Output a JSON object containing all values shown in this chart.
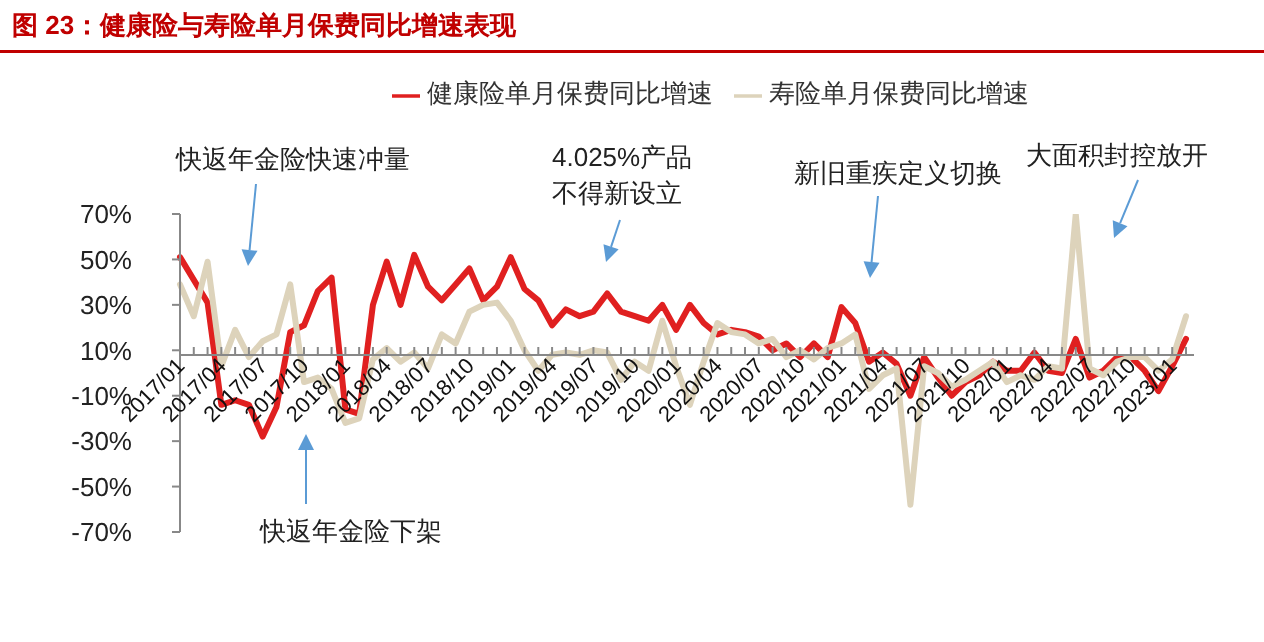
{
  "chart_data": {
    "type": "line",
    "title": "图 23：健康险与寿险单月保费同比增速表现",
    "legend": "top",
    "marker": "none",
    "categories": [
      "2017/01",
      null,
      null,
      "2017/04",
      null,
      null,
      "2017/07",
      null,
      null,
      "2017/10",
      null,
      null,
      "2018/01",
      null,
      null,
      "2018/04",
      null,
      null,
      "2018/07",
      null,
      null,
      "2018/10",
      null,
      null,
      "2019/01",
      null,
      null,
      "2019/04",
      null,
      null,
      "2019/07",
      null,
      null,
      "2019/10",
      null,
      null,
      "2020/01",
      null,
      null,
      "2020/04",
      null,
      null,
      "2020/07",
      null,
      null,
      "2020/10",
      null,
      null,
      "2021/01",
      null,
      null,
      "2021/04",
      null,
      null,
      "2021/07",
      null,
      null,
      "2021/10",
      null,
      null,
      "2022/01",
      null,
      null,
      "2022/04",
      null,
      null,
      "2022/07",
      null,
      null,
      "2022/10",
      null,
      null,
      "2023/01",
      null
    ],
    "series": [
      {
        "name": "健康险单月保费同比增速",
        "color": "#e02020",
        "values": [
          51,
          41,
          31,
          -14,
          -12,
          -14,
          -28,
          -15,
          18,
          21,
          36,
          42,
          -16,
          -18,
          30,
          49,
          30,
          52,
          38,
          32,
          39,
          46,
          32,
          38,
          51,
          37,
          32,
          21,
          28,
          25,
          27,
          35,
          27,
          25,
          23,
          30,
          19,
          30,
          22,
          17,
          19,
          18,
          16,
          10,
          13,
          7,
          13,
          7,
          29,
          22,
          5,
          9,
          4,
          -10,
          7,
          -2,
          -10,
          -4,
          -1,
          5,
          1,
          1,
          9,
          1,
          0,
          15,
          -2,
          1,
          7,
          7,
          1,
          -8,
          3,
          15
        ]
      },
      {
        "name": "寿险单月保费同比增速",
        "color": "#ddd3bb",
        "values": [
          39,
          25,
          49,
          3,
          19,
          7,
          14,
          17,
          39,
          -4,
          -2,
          -7,
          -22,
          -20,
          6,
          11,
          5,
          9,
          2,
          17,
          13,
          27,
          30,
          31,
          23,
          10,
          1,
          8,
          9,
          8,
          10,
          9,
          -3,
          5,
          1,
          23,
          3,
          -14,
          5,
          22,
          18,
          17,
          13,
          15,
          7,
          10,
          6,
          11,
          13,
          17,
          -7,
          -1,
          2,
          -58,
          3,
          0,
          -6,
          -3,
          1,
          5,
          -4,
          -1,
          -3,
          3,
          2,
          70,
          2,
          -1,
          5,
          7,
          7,
          1,
          6,
          25
        ]
      }
    ],
    "ylim": [
      -70,
      70
    ],
    "yticks": [
      {
        "value": -70,
        "label": "-70%"
      },
      {
        "value": -50,
        "label": "-50%"
      },
      {
        "value": -30,
        "label": "-30%"
      },
      {
        "value": -10,
        "label": "-10%"
      },
      {
        "value": 10,
        "label": "10%"
      },
      {
        "value": 30,
        "label": "30%"
      },
      {
        "value": 50,
        "label": "50%"
      },
      {
        "value": 70,
        "label": "70%"
      }
    ],
    "annotations": [
      "快返年金险快速冲量",
      "快返年金险下架",
      "4.025%产品",
      "不得新设立",
      "新旧重疾定义切换",
      "大面积封控放开"
    ]
  }
}
